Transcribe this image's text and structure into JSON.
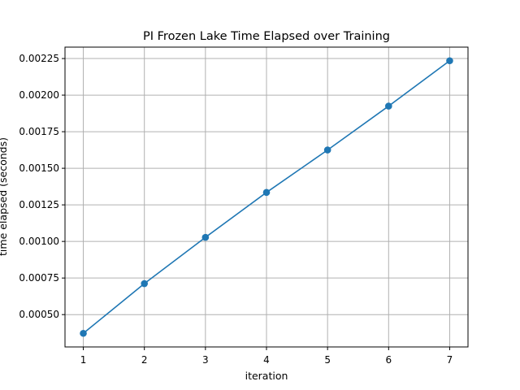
{
  "chart_data": {
    "type": "line",
    "title": "PI Frozen Lake Time Elapsed over Training",
    "xlabel": "iteration",
    "ylabel": "time elapsed (seconds)",
    "x": [
      1,
      2,
      3,
      4,
      5,
      6,
      7
    ],
    "series": [
      {
        "values": [
          0.000372,
          0.000712,
          0.001028,
          0.001335,
          0.001625,
          0.001925,
          0.002235
        ],
        "color": "#1f77b4",
        "marker": "circle"
      }
    ],
    "xlim": [
      0.7,
      7.3
    ],
    "ylim": [
      0.000279,
      0.002328
    ],
    "x_ticks": [
      {
        "value": 1,
        "label": "1"
      },
      {
        "value": 2,
        "label": "2"
      },
      {
        "value": 3,
        "label": "3"
      },
      {
        "value": 4,
        "label": "4"
      },
      {
        "value": 5,
        "label": "5"
      },
      {
        "value": 6,
        "label": "6"
      },
      {
        "value": 7,
        "label": "7"
      }
    ],
    "y_ticks": [
      {
        "value": 0.0005,
        "label": "0.00050"
      },
      {
        "value": 0.00075,
        "label": "0.00075"
      },
      {
        "value": 0.001,
        "label": "0.00100"
      },
      {
        "value": 0.00125,
        "label": "0.00125"
      },
      {
        "value": 0.0015,
        "label": "0.00150"
      },
      {
        "value": 0.00175,
        "label": "0.00175"
      },
      {
        "value": 0.002,
        "label": "0.00200"
      },
      {
        "value": 0.00225,
        "label": "0.00225"
      }
    ],
    "grid": true,
    "legend": "none"
  }
}
